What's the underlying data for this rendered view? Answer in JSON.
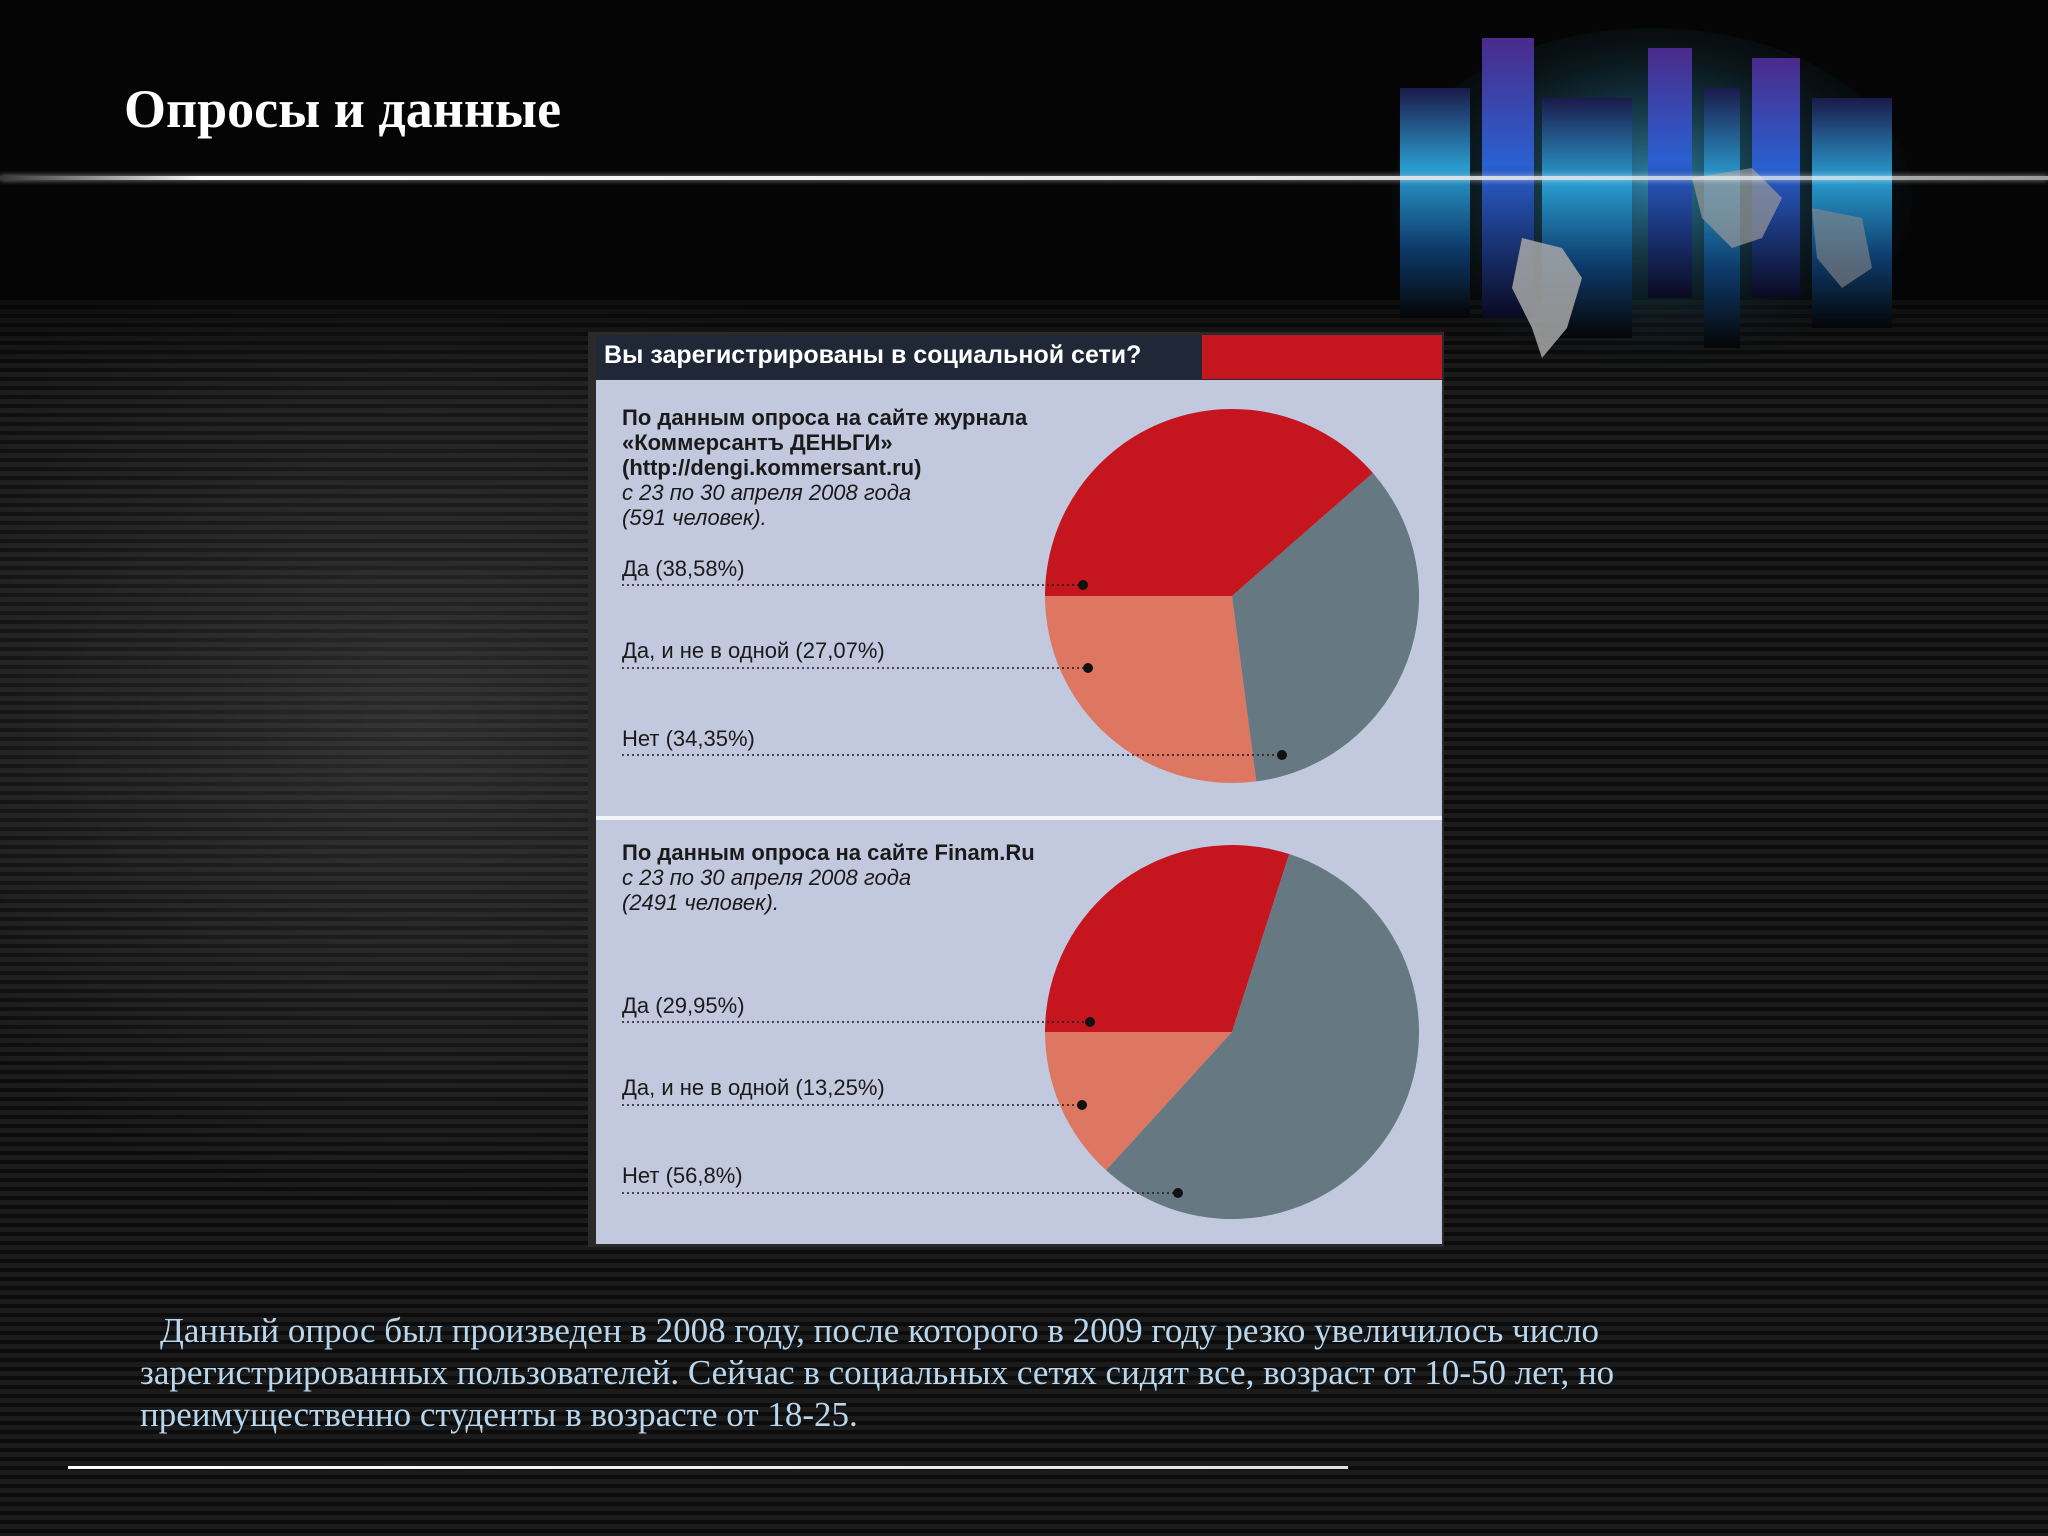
{
  "slide": {
    "title": "Опросы и данные",
    "body": "Данный опрос был произведен в 2008 году, после которого в 2009 году резко увеличилось число зарегистрированных пользователей. Сейчас в социальных сетях сидят все, возраст от 10-50 лет, но преимущественно студенты в возрасте от 18-25."
  },
  "chart_data": {
    "type": "pie",
    "title": "Вы зарегистрированы в социальной сети?",
    "colors": {
      "yes": "#c5161f",
      "yes_many": "#de7762",
      "no": "#667882",
      "header_bg": "#202838",
      "panel_bg": "#c2c9de"
    },
    "panels": [
      {
        "source_lines": [
          "По данным опроса на сайте журнала",
          "«Коммерсантъ ДЕНЬГИ»",
          "(http://dengi.kommersant.ru)"
        ],
        "period": "с 23 по 30 апреля 2008 года",
        "sample": "(591 человек).",
        "slices": [
          {
            "label": "Да (38,58%)",
            "value": 38.58,
            "color": "#c5161f"
          },
          {
            "label": "Да, и не в одной (27,07%)",
            "value": 27.07,
            "color": "#de7762"
          },
          {
            "label": "Нет (34,35%)",
            "value": 34.35,
            "color": "#667882"
          }
        ]
      },
      {
        "source_lines": [
          "По данным опроса на сайте Finam.Ru"
        ],
        "period": "с 23 по 30 апреля 2008 года",
        "sample": "(2491 человек).",
        "slices": [
          {
            "label": "Да (29,95%)",
            "value": 29.95,
            "color": "#c5161f"
          },
          {
            "label": "Да, и не в одной (13,25%)",
            "value": 13.25,
            "color": "#de7762"
          },
          {
            "label": "Нет (56,8%)",
            "value": 56.8,
            "color": "#667882"
          }
        ]
      }
    ]
  }
}
